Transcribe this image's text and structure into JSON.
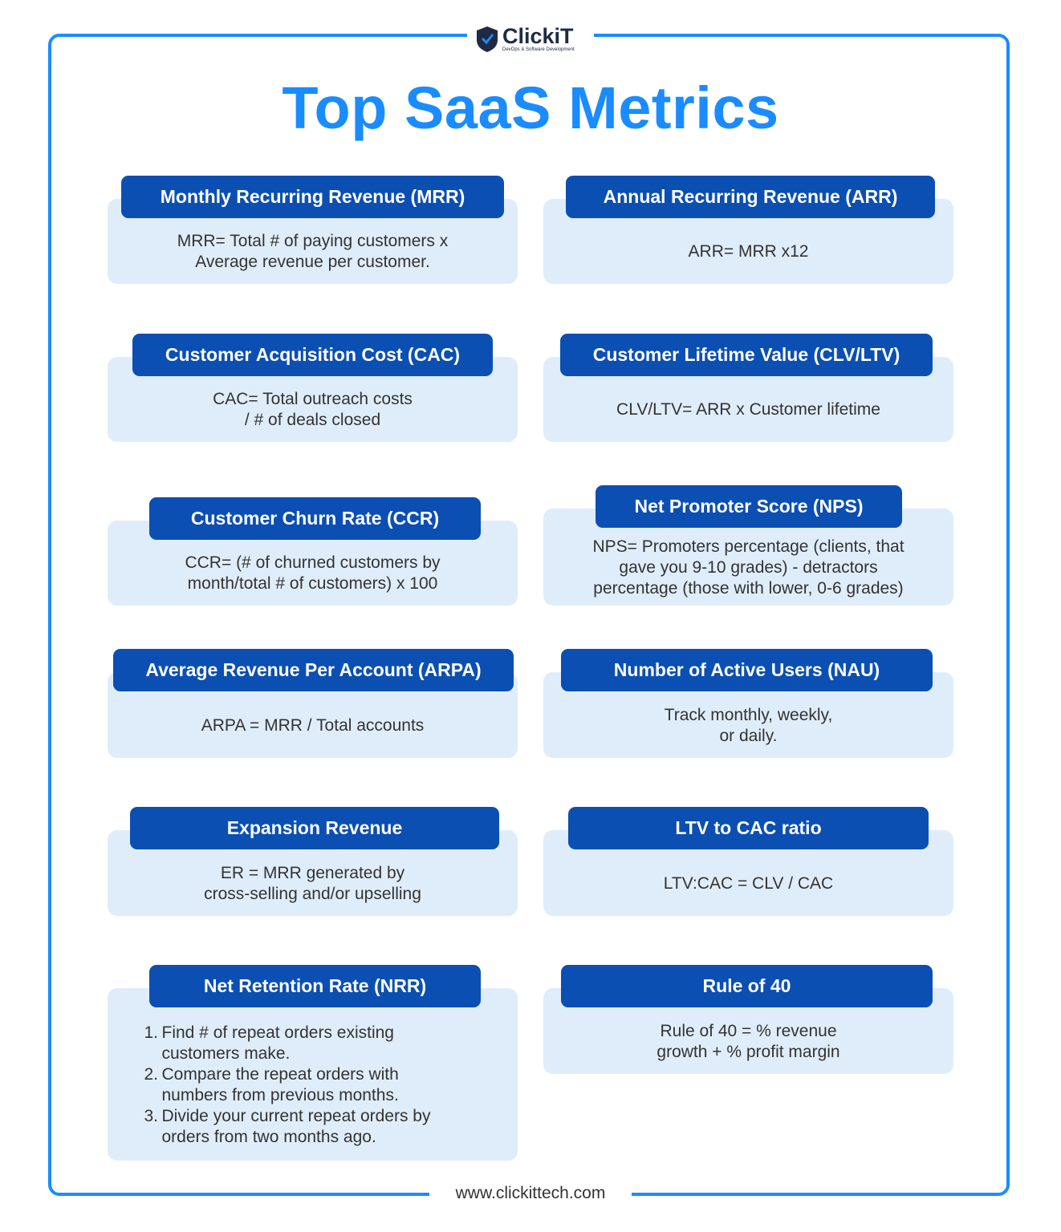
{
  "header": {
    "logo": "ClickiT",
    "logo_tagline": "DevOps & Software Development",
    "title": "Top SaaS Metrics"
  },
  "cards": [
    {
      "title": "Monthly Recurring Revenue (MRR)",
      "lines": [
        "MRR= Total # of paying customers x",
        "Average revenue per customer."
      ]
    },
    {
      "title": "Annual Recurring Revenue (ARR)",
      "lines": [
        "ARR= MRR x12"
      ]
    },
    {
      "title": "Customer Acquisition Cost (CAC)",
      "lines": [
        "CAC= Total outreach costs",
        "/ # of deals closed"
      ]
    },
    {
      "title": "Customer Lifetime Value (CLV/LTV)",
      "lines": [
        "CLV/LTV= ARR x Customer lifetime"
      ]
    },
    {
      "title": "Customer Churn Rate (CCR)",
      "lines": [
        "CCR= (# of churned customers by",
        "month/total # of customers) x 100"
      ]
    },
    {
      "title": "Net Promoter Score (NPS)",
      "lines": [
        "NPS= Promoters percentage (clients, that",
        "gave you 9-10 grades) - detractors",
        "percentage (those with lower, 0-6 grades)"
      ]
    },
    {
      "title": "Average Revenue Per Account (ARPA)",
      "lines": [
        "ARPA = MRR / Total accounts"
      ]
    },
    {
      "title": "Number of Active Users (NAU)",
      "lines": [
        "Track monthly, weekly,",
        "or daily."
      ]
    },
    {
      "title": "Expansion Revenue",
      "lines": [
        "ER = MRR generated by",
        "cross-selling and/or upselling"
      ]
    },
    {
      "title": "LTV to CAC ratio",
      "lines": [
        "LTV:CAC = CLV / CAC"
      ]
    },
    {
      "title": "Net Retention Rate (NRR)",
      "items": [
        {
          "number": "1.",
          "lines": [
            "Find # of repeat orders existing",
            "customers make."
          ]
        },
        {
          "number": "2.",
          "lines": [
            "Compare the repeat orders with",
            "numbers from previous months."
          ]
        },
        {
          "number": "3.",
          "lines": [
            "Divide your current repeat orders by",
            "orders from two months ago."
          ]
        }
      ]
    },
    {
      "title": "Rule of 40",
      "lines": [
        "Rule of 40 = % revenue",
        "growth + % profit margin"
      ]
    }
  ],
  "footer": {
    "url": "www.clickittech.com"
  }
}
